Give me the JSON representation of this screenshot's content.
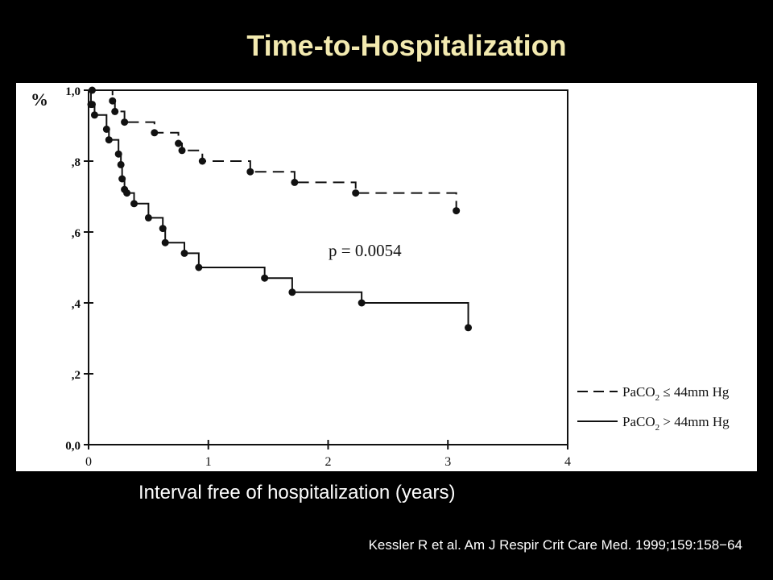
{
  "slide": {
    "title": "Time-to-Hospitalization",
    "xlabel": "Interval free of hospitalization (years)",
    "citation": "Kessler R et al. Am J Respir Crit Care Med. 1999;159:158−64"
  },
  "colors": {
    "background": "#000000",
    "title": "#f3eab0",
    "plot_background": "#ffffff",
    "ink": "#111111"
  },
  "chart_data": {
    "type": "line",
    "subtype": "kaplan-meier step curve",
    "ylabel": "%",
    "xlim": [
      0,
      4
    ],
    "ylim": [
      0,
      1
    ],
    "x_ticks": [
      "0",
      "1",
      "2",
      "3",
      "4"
    ],
    "y_ticks": [
      "0,0",
      ",2",
      ",4",
      ",6",
      ",8",
      "1,0"
    ],
    "annotation": "p = 0.0054",
    "grid": false,
    "legend_position": "right",
    "series": [
      {
        "key": "low",
        "legend": "PaCO2 ≤ 44mm Hg",
        "line_style": "dashed",
        "x": [
          0,
          0.03,
          0.2,
          0.22,
          0.3,
          0.55,
          0.75,
          0.78,
          0.95,
          1.35,
          1.72,
          2.23,
          3.07
        ],
        "y": [
          1.0,
          1.0,
          0.97,
          0.94,
          0.91,
          0.88,
          0.85,
          0.83,
          0.8,
          0.77,
          0.74,
          0.71,
          0.66
        ]
      },
      {
        "key": "high",
        "legend": "PaCO2 > 44mm Hg",
        "line_style": "solid",
        "x": [
          0,
          0.02,
          0.03,
          0.05,
          0.15,
          0.17,
          0.25,
          0.27,
          0.28,
          0.3,
          0.32,
          0.38,
          0.5,
          0.62,
          0.64,
          0.8,
          0.92,
          1.47,
          1.7,
          2.28,
          3.17
        ],
        "y": [
          1.0,
          0.96,
          0.96,
          0.93,
          0.89,
          0.86,
          0.82,
          0.79,
          0.75,
          0.72,
          0.71,
          0.68,
          0.64,
          0.61,
          0.57,
          0.54,
          0.5,
          0.47,
          0.43,
          0.4,
          0.33
        ]
      }
    ]
  }
}
